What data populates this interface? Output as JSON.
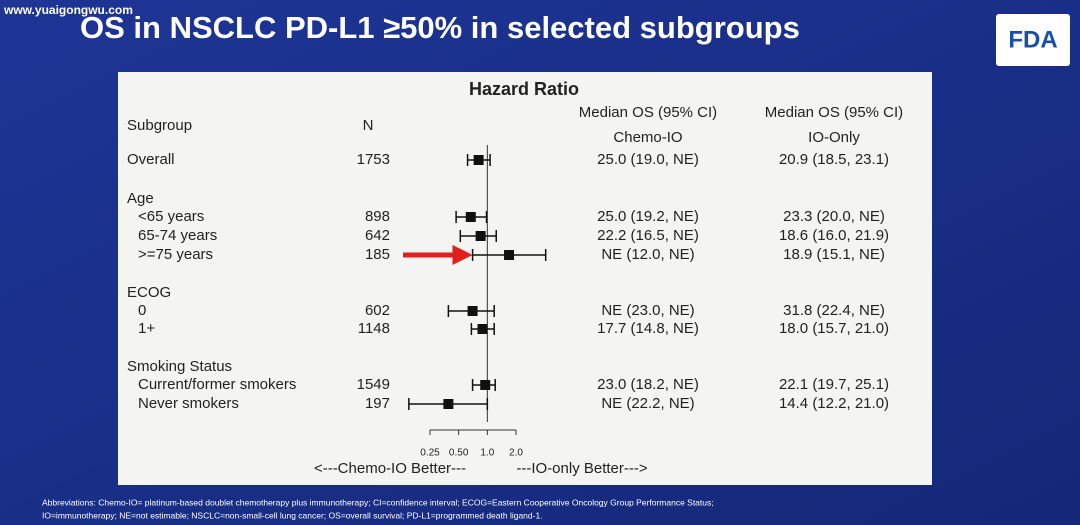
{
  "watermark": "www.yuaigongwu.com",
  "logo": "FDA",
  "chart_data": {
    "type": "forest",
    "title": "OS in NSCLC PD-L1 ≥50% in selected subgroups",
    "axis_title": "Hazard Ratio",
    "columns": {
      "subgroup": "Subgroup",
      "n": "N",
      "col1": [
        "Median OS (95% CI)",
        "Chemo-IO"
      ],
      "col2": [
        "Median OS (95% CI)",
        "IO-Only"
      ]
    },
    "xscale": "log",
    "xlim": [
      0.25,
      2.0
    ],
    "xticks": [
      0.25,
      {
        "value": 0.5,
        "label": "0.50"
      },
      {
        "value": 1,
        "label": "1.0"
      },
      {
        "value": 2,
        "label": "2.0"
      }
    ],
    "reference": 1,
    "color": "#111111",
    "left_label": "<---Chemo-IO Better---",
    "right_label": "---IO-only Better--->",
    "rows": [
      {
        "label": "Overall",
        "n": 1753,
        "hr": 0.81,
        "ci": [
          0.62,
          1.07
        ],
        "col1": "25.0 (19.0, NE)",
        "col2": "20.9 (18.5, 23.1)"
      },
      {
        "label": "Age",
        "rows": [
          {
            "label": "<65 years",
            "n": 898,
            "hr": 0.67,
            "ci": [
              0.47,
              0.98
            ],
            "col1": "25.0 (19.2, NE)",
            "col2": "23.3 (20.0, NE)"
          },
          {
            "label": "65-74 years",
            "n": 642,
            "hr": 0.85,
            "ci": [
              0.52,
              1.24
            ],
            "col1": "22.2 (16.5, NE)",
            "col2": "18.6 (16.0, 21.9)"
          },
          {
            "label": ">=75 years",
            "n": 185,
            "hr": 1.69,
            "ci": [
              0.7,
              4.1
            ],
            "col1": "NE (12.0, NE)",
            "col2": "18.9 (15.1, NE)"
          }
        ]
      },
      {
        "label": "ECOG",
        "rows": [
          {
            "label": "0",
            "n": 602,
            "hr": 0.7,
            "ci": [
              0.39,
              1.18
            ],
            "col1": "NE (23.0, NE)",
            "col2": "31.8 (22.4, NE)"
          },
          {
            "label": "1+",
            "n": 1148,
            "hr": 0.89,
            "ci": [
              0.68,
              1.18
            ],
            "col1": "17.7 (14.8, NE)",
            "col2": "18.0 (15.7, 21.0)"
          }
        ]
      },
      {
        "label": "Smoking Status",
        "rows": [
          {
            "label": "Current/former smokers",
            "n": 1549,
            "hr": 0.95,
            "ci": [
              0.7,
              1.21
            ],
            "col1": "23.0 (18.2, NE)",
            "col2": "22.1 (19.7, 25.1)"
          },
          {
            "label": "Never smokers",
            "n": 197,
            "hr": 0.39,
            "ci": [
              0.15,
              1.0
            ],
            "col1": "NE (22.2, NE)",
            "col2": "14.4 (12.2, 21.0)"
          }
        ]
      }
    ],
    "footnote": [
      "Abbreviations: Chemo-IO= platinum-based doublet chemotherapy plus immunotherapy; CI=confidence interval; ECOG=Eastern Cooperative Oncology Group Performance Status;",
      "IO=immunotherapy; NE=not estimable; NSCLC=non-small-cell lung cancer; OS=overall survival; PD-L1=programmed death ligand-1."
    ]
  }
}
